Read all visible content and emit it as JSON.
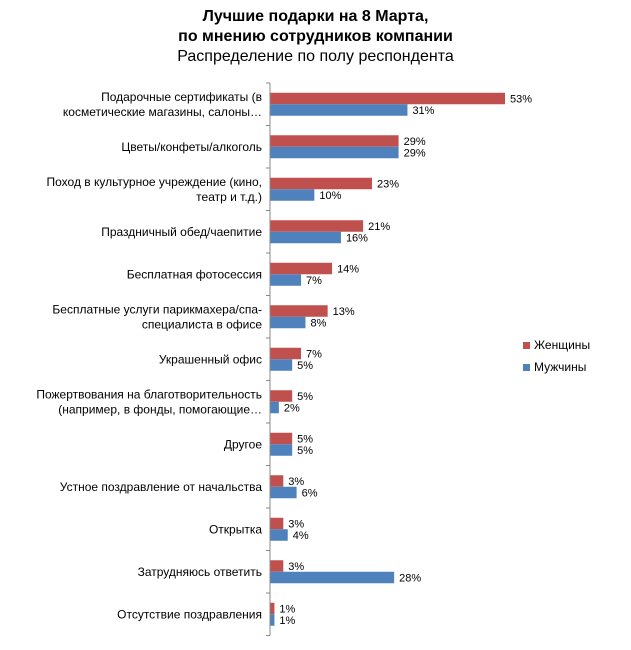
{
  "chart_data": {
    "type": "bar",
    "orientation": "horizontal",
    "title": "Лучшие подарки на 8 Марта,",
    "title_line2": "по мнению сотрудников компании",
    "subtitle": "Распределение по полу респондента",
    "categories": [
      [
        "Подарочные сертификаты (в",
        "косметические магазины, салоны…"
      ],
      [
        "Цветы/конфеты/алкоголь"
      ],
      [
        "Поход в культурное учреждение (кино,",
        "театр и т.д.)"
      ],
      [
        "Праздничный обед/чаепитие"
      ],
      [
        "Бесплатная фотосессия"
      ],
      [
        "Бесплатные услуги парикмахера/спа-",
        "специалиста в офисе"
      ],
      [
        "Украшенный офис"
      ],
      [
        "Пожертвования на благотворительность",
        "(например, в фонды, помогающие…"
      ],
      [
        "Другое"
      ],
      [
        "Устное поздравление от начальства"
      ],
      [
        "Открытка"
      ],
      [
        "Затрудняюсь ответить"
      ],
      [
        "Отсутствие поздравления"
      ]
    ],
    "series": [
      {
        "name": "Женщины",
        "color": "#C0504D",
        "values": [
          53,
          29,
          23,
          21,
          14,
          13,
          7,
          5,
          5,
          3,
          3,
          3,
          1
        ]
      },
      {
        "name": "Мужчины",
        "color": "#4F81BD",
        "values": [
          31,
          29,
          10,
          16,
          7,
          8,
          5,
          2,
          5,
          6,
          4,
          28,
          1
        ]
      }
    ],
    "value_suffix": "%",
    "xlim": [
      0,
      60
    ],
    "legend_position": "right",
    "grid": false
  }
}
